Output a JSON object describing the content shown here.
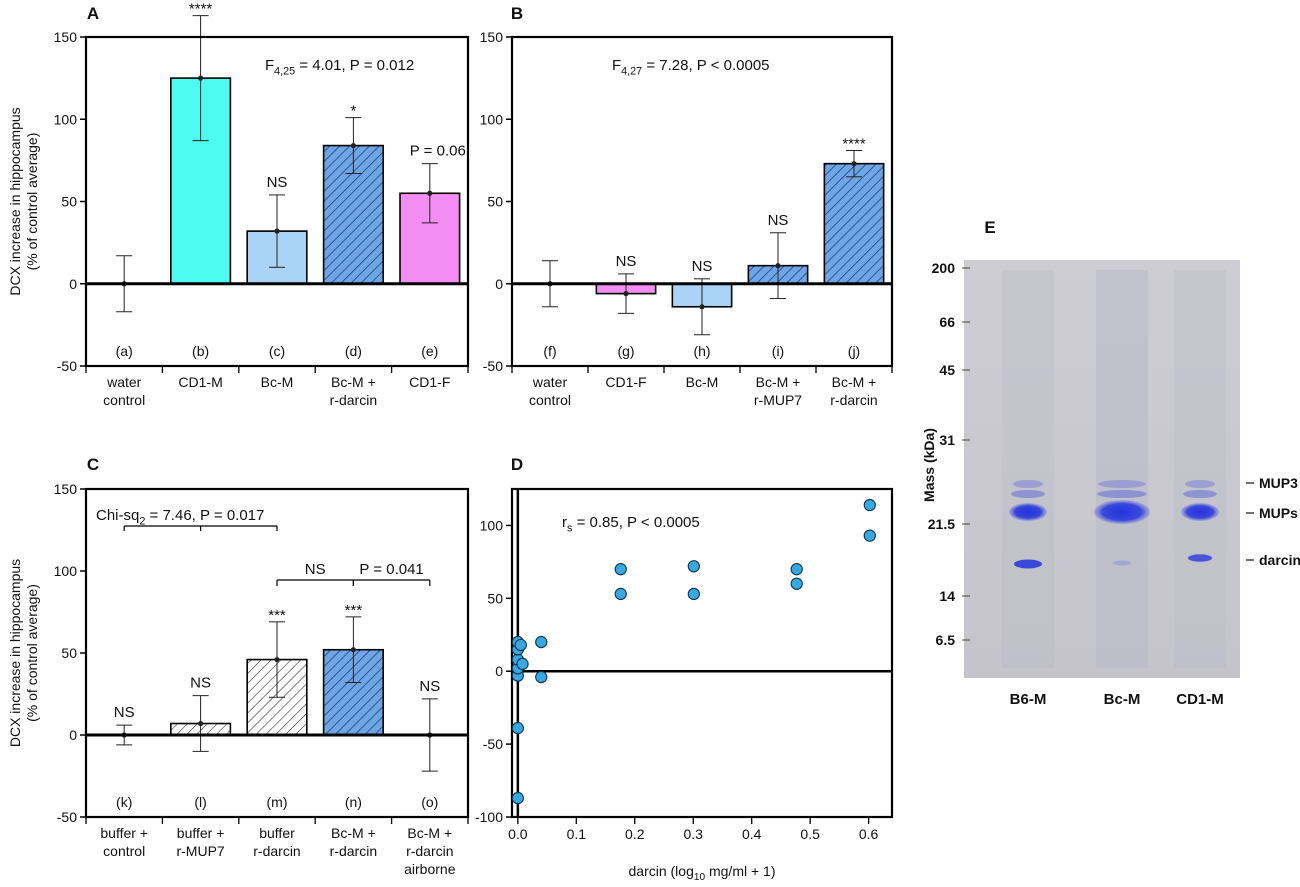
{
  "colors": {
    "cyan": "#4dfbf2",
    "light_blue": "#a9d3f7",
    "hatch_blue": "#6ea6e3",
    "pink": "#f48df3",
    "scatter": "#39a8e0",
    "axis": "#000000",
    "gel_bg": "#c7c7cd",
    "band": "#2f3fe0"
  },
  "chart_data": [
    {
      "panel": "A",
      "type": "bar",
      "ylabel": "DCX increase in hippocampus",
      "ylabel2": "(% of control average)",
      "ylim": [
        -50,
        150
      ],
      "yticks": [
        "150",
        "100",
        "50",
        "0",
        "-50"
      ],
      "stat": "F4,25 = 4.01, P = 0.012",
      "stat_main": "F",
      "stat_sub": "4,25",
      "stat_rest": " = 4.01, P = 0.012",
      "groups": [
        {
          "letter": "(a)",
          "label": [
            "water",
            "control"
          ],
          "value": 0,
          "err": 17,
          "fill": "none",
          "sig": ""
        },
        {
          "letter": "(b)",
          "label": [
            "CD1-M"
          ],
          "value": 125,
          "err": 38,
          "fill": "cyan",
          "sig": "****"
        },
        {
          "letter": "(c)",
          "label": [
            "Bc-M"
          ],
          "value": 32,
          "err": 22,
          "fill": "light_blue",
          "sig": "NS"
        },
        {
          "letter": "(d)",
          "label": [
            "Bc-M +",
            "r-darcin"
          ],
          "value": 84,
          "err": 17,
          "fill": "hatch_blue",
          "sig": "*"
        },
        {
          "letter": "(e)",
          "label": [
            "CD1-F"
          ],
          "value": 55,
          "err": 18,
          "fill": "pink",
          "sig": "P = 0.06"
        }
      ]
    },
    {
      "panel": "B",
      "type": "bar",
      "ylim": [
        -50,
        150
      ],
      "yticks": [
        "150",
        "100",
        "50",
        "0",
        "-50"
      ],
      "stat": "F4,27 = 7.28, P < 0.0005",
      "stat_main": "F",
      "stat_sub": "4,27",
      "stat_rest": " = 7.28, P < 0.0005",
      "groups": [
        {
          "letter": "(f)",
          "label": [
            "water",
            "control"
          ],
          "value": 0,
          "err": 14,
          "fill": "none",
          "sig": ""
        },
        {
          "letter": "(g)",
          "label": [
            "CD1-F"
          ],
          "value": -6,
          "err": 12,
          "fill": "pink",
          "sig": "NS"
        },
        {
          "letter": "(h)",
          "label": [
            "Bc-M"
          ],
          "value": -14,
          "err": 17,
          "fill": "light_blue",
          "sig": "NS"
        },
        {
          "letter": "(i)",
          "label": [
            "Bc-M +",
            "r-MUP7"
          ],
          "value": 11,
          "err": 20,
          "fill": "hatch_blue",
          "sig": "NS"
        },
        {
          "letter": "(j)",
          "label": [
            "Bc-M +",
            "r-darcin"
          ],
          "value": 73,
          "err": 8,
          "fill": "hatch_blue",
          "sig": "****"
        }
      ]
    },
    {
      "panel": "C",
      "type": "bar",
      "ylabel": "DCX increase in hippocampus",
      "ylabel2": "(% of control average)",
      "ylim": [
        -50,
        150
      ],
      "yticks": [
        "150",
        "100",
        "50",
        "0",
        "-50"
      ],
      "stat": "Chi-sq2 = 7.46, P = 0.017",
      "stat_main": "Chi-sq",
      "stat_sub": "2",
      "stat_rest": " = 7.46, P = 0.017",
      "brackets": [
        {
          "label": "NS",
          "from": 2,
          "to": 3
        },
        {
          "label": "P = 0.041",
          "from": 3,
          "to": 4
        }
      ],
      "groups": [
        {
          "letter": "(k)",
          "label": [
            "buffer +",
            "control"
          ],
          "value": 0,
          "err": 6,
          "fill": "none",
          "sig": "NS"
        },
        {
          "letter": "(l)",
          "label": [
            "buffer +",
            "r-MUP7"
          ],
          "value": 7,
          "err": 17,
          "fill": "hatch_white",
          "sig": "NS"
        },
        {
          "letter": "(m)",
          "label": [
            "buffer",
            "r-darcin"
          ],
          "value": 46,
          "err": 23,
          "fill": "hatch_white",
          "sig": "***"
        },
        {
          "letter": "(n)",
          "label": [
            "Bc-M +",
            "r-darcin"
          ],
          "value": 52,
          "err": 20,
          "fill": "hatch_blue",
          "sig": "***"
        },
        {
          "letter": "(o)",
          "label": [
            "Bc-M +",
            "r-darcin",
            "airborne"
          ],
          "value": 0,
          "err": 22,
          "fill": "none",
          "sig": "NS"
        }
      ]
    },
    {
      "panel": "D",
      "type": "scatter",
      "xlabel_main": "darcin (log",
      "xlabel_sub": "10",
      "xlabel_rest": " mg/ml + 1)",
      "xlim": [
        -0.01,
        0.64
      ],
      "ylim": [
        -100,
        125
      ],
      "xticks": [
        "0.0",
        "0.1",
        "0.2",
        "0.3",
        "0.4",
        "0.5",
        "0.6"
      ],
      "yticks": [
        "100",
        "50",
        "0",
        "-50",
        "-100"
      ],
      "stat_main": "r",
      "stat_sub": "s",
      "stat_rest": " = 0.85, P < 0.0005",
      "points": [
        [
          0.0,
          -87
        ],
        [
          0.0,
          -39
        ],
        [
          0.0,
          -3
        ],
        [
          0.0,
          2
        ],
        [
          0.0,
          8
        ],
        [
          0.0,
          15
        ],
        [
          0.0,
          20
        ],
        [
          0.005,
          18
        ],
        [
          0.008,
          5
        ],
        [
          0.04,
          20
        ],
        [
          0.04,
          -4
        ],
        [
          0.176,
          70
        ],
        [
          0.176,
          53
        ],
        [
          0.301,
          72
        ],
        [
          0.301,
          53
        ],
        [
          0.477,
          70
        ],
        [
          0.477,
          60
        ],
        [
          0.602,
          114
        ],
        [
          0.602,
          93
        ]
      ]
    }
  ],
  "gel": {
    "panel": "E",
    "ylabel": "Mass (kDa)",
    "markers": [
      "200",
      "66",
      "45",
      "31",
      "21.5",
      "14",
      "6.5"
    ],
    "lanes": [
      "B6-M",
      "Bc-M",
      "CD1-M"
    ],
    "band_labels": [
      "MUP3",
      "MUPs",
      "darcin"
    ]
  }
}
